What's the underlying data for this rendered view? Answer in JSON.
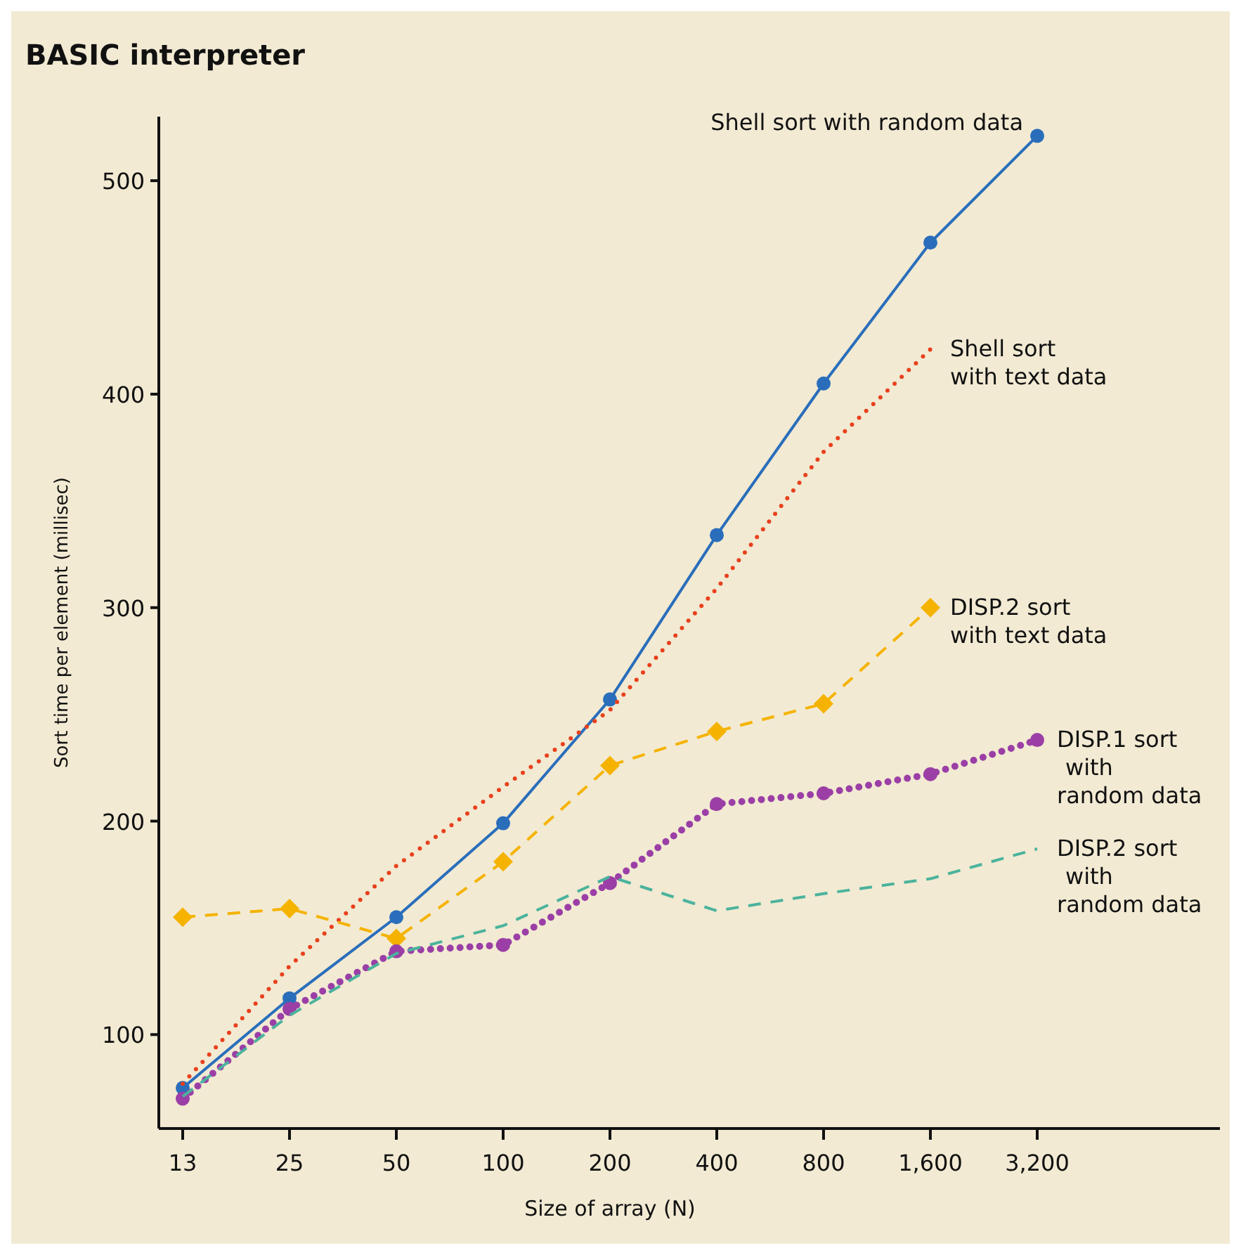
{
  "chart_data": {
    "type": "line",
    "title": "BASIC interpreter",
    "xlabel": "Size of array (N)",
    "ylabel": "Sort time per element (millisec)",
    "categories": [
      "13",
      "25",
      "50",
      "100",
      "200",
      "400",
      "800",
      "1,600",
      "3,200"
    ],
    "ylim": [
      56,
      530
    ],
    "yticks": [
      100,
      200,
      300,
      400,
      500
    ],
    "series": [
      {
        "name": "Shell sort with random data",
        "color": "#2a6ebb",
        "line_style": "solid",
        "marker": "circle",
        "values": [
          75,
          117,
          155,
          199,
          257,
          334,
          405,
          471,
          521
        ]
      },
      {
        "name": "Shell sort\nwith text data",
        "color": "#e8401c",
        "line_style": "dotted",
        "marker": "none",
        "values": [
          77,
          132,
          179,
          216,
          252,
          309,
          373,
          421,
          null
        ]
      },
      {
        "name": "DISP.2 sort\nwith text data",
        "color": "#f5b300",
        "line_style": "dashed",
        "marker": "diamond",
        "values": [
          155,
          159,
          145,
          181,
          226,
          242,
          255,
          300,
          null
        ]
      },
      {
        "name": "DISP.1 sort\nwith\nrandom data",
        "color": "#9b3fa6",
        "line_style": "dotted",
        "marker": "circle",
        "values": [
          70,
          112,
          139,
          142,
          171,
          208,
          213,
          222,
          238
        ]
      },
      {
        "name": "DISP.2 sort\nwith\nrandom data",
        "color": "#4bb39c",
        "line_style": "dashed",
        "marker": "none",
        "values": [
          71,
          109,
          138,
          151,
          174,
          158,
          166,
          173,
          187
        ]
      }
    ]
  }
}
